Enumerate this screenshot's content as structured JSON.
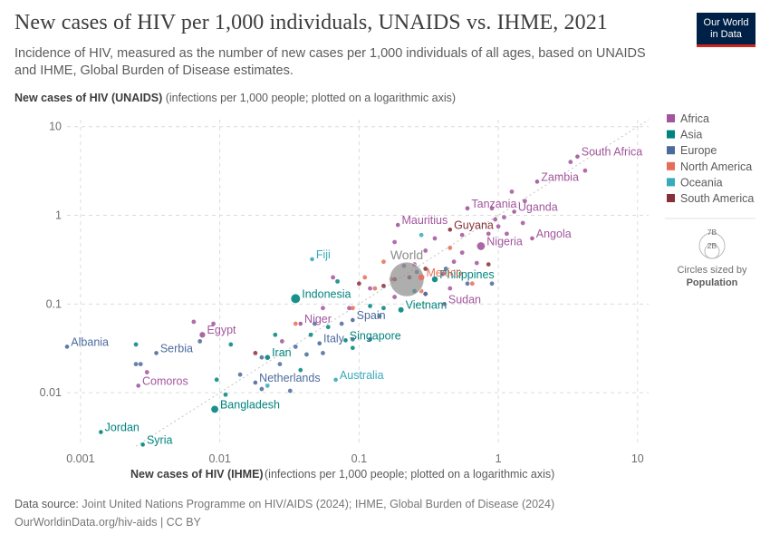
{
  "header": {
    "title": "New cases of HIV per 1,000 individuals, UNAIDS vs. IHME, 2021",
    "subtitle": "Incidence of HIV, measured as the number of new cases per 1,000 individuals of all ages, based on UNAIDS and IHME, Global Burden of Disease estimates.",
    "logo_line1": "Our World",
    "logo_line2": "in Data"
  },
  "axes": {
    "y_label_bold": "New cases of HIV (UNAIDS)",
    "y_label_rest": " (infections per 1,000 people; plotted on a logarithmic axis)",
    "x_label_bold": "New cases of HIV (IHME)",
    "x_label_rest": " (infections per 1,000 people; plotted on a logarithmic axis)"
  },
  "legend": {
    "size_title": "Circles sized by",
    "size_variable": "Population",
    "size_values": [
      "7B",
      "2B"
    ]
  },
  "footer": {
    "source_label": "Data source:",
    "source_text": " Joint United Nations Programme on HIV/AIDS (2024); IHME, Global Burden of Disease (2024)",
    "url_text": "OurWorldinData.org/hiv-aids | CC BY"
  },
  "chart_data": {
    "type": "scatter",
    "x_scale": "log",
    "y_scale": "log",
    "xlim": [
      0.0008,
      12
    ],
    "ylim": [
      0.0025,
      12
    ],
    "x_ticks": [
      {
        "v": 0.001,
        "label": "0.001"
      },
      {
        "v": 0.01,
        "label": "0.01"
      },
      {
        "v": 0.1,
        "label": "0.1"
      },
      {
        "v": 1,
        "label": "1"
      },
      {
        "v": 10,
        "label": "10"
      }
    ],
    "y_ticks": [
      {
        "v": 0.01,
        "label": "0.01"
      },
      {
        "v": 0.1,
        "label": "0.1"
      },
      {
        "v": 1,
        "label": "1"
      },
      {
        "v": 10,
        "label": "10"
      }
    ],
    "grid": true,
    "diagonal": "y = x reference line",
    "colors": {
      "Africa": "#a2559c",
      "Asia": "#00847e",
      "Europe": "#4c6a9c",
      "North America": "#e56e5a",
      "Oceania": "#38aaba",
      "South America": "#883039",
      "World": "#8c8c8c"
    },
    "legend_entries": [
      "Africa",
      "Asia",
      "Europe",
      "North America",
      "Oceania",
      "South America"
    ],
    "labeled_points": [
      {
        "name": "South Africa",
        "region": "Africa",
        "x": 3.7,
        "y": 4.6,
        "pop_m": 60
      },
      {
        "name": "Zambia",
        "region": "Africa",
        "x": 1.9,
        "y": 2.4,
        "pop_m": 19
      },
      {
        "name": "Tanzania",
        "region": "Africa",
        "x": 0.6,
        "y": 1.2,
        "pop_m": 64
      },
      {
        "name": "Uganda",
        "region": "Africa",
        "x": 1.3,
        "y": 1.1,
        "pop_m": 46
      },
      {
        "name": "Mauritius",
        "region": "Africa",
        "x": 0.19,
        "y": 0.78,
        "pop_m": 1.3
      },
      {
        "name": "Guyana",
        "region": "South America",
        "x": 0.45,
        "y": 0.69,
        "pop_m": 0.8
      },
      {
        "name": "Nigeria",
        "region": "Africa",
        "x": 0.75,
        "y": 0.45,
        "pop_m": 213
      },
      {
        "name": "Angola",
        "region": "Africa",
        "x": 1.75,
        "y": 0.55,
        "pop_m": 34
      },
      {
        "name": "Fiji",
        "region": "Oceania",
        "x": 0.046,
        "y": 0.32,
        "pop_m": 0.9
      },
      {
        "name": "World",
        "region": "World",
        "x": 0.22,
        "y": 0.19,
        "pop_m": 7900
      },
      {
        "name": "Philippines",
        "region": "Asia",
        "x": 0.35,
        "y": 0.19,
        "pop_m": 114
      },
      {
        "name": "Mexico",
        "region": "North America",
        "x": 0.28,
        "y": 0.2,
        "pop_m": 127
      },
      {
        "name": "Indonesia",
        "region": "Asia",
        "x": 0.035,
        "y": 0.115,
        "pop_m": 274
      },
      {
        "name": "Sudan",
        "region": "Africa",
        "x": 0.41,
        "y": 0.1,
        "pop_m": 46
      },
      {
        "name": "Vietnam",
        "region": "Asia",
        "x": 0.2,
        "y": 0.086,
        "pop_m": 98
      },
      {
        "name": "Spain",
        "region": "Europe",
        "x": 0.09,
        "y": 0.066,
        "pop_m": 47
      },
      {
        "name": "Niger",
        "region": "Africa",
        "x": 0.038,
        "y": 0.06,
        "pop_m": 25
      },
      {
        "name": "Egypt",
        "region": "Africa",
        "x": 0.0075,
        "y": 0.045,
        "pop_m": 109
      },
      {
        "name": "Albania",
        "region": "Europe",
        "x": 0.0008,
        "y": 0.033,
        "pop_m": 2.8
      },
      {
        "name": "Serbia",
        "region": "Europe",
        "x": 0.0035,
        "y": 0.028,
        "pop_m": 6.8
      },
      {
        "name": "Italy",
        "region": "Europe",
        "x": 0.052,
        "y": 0.036,
        "pop_m": 59
      },
      {
        "name": "Singapore",
        "region": "Asia",
        "x": 0.08,
        "y": 0.039,
        "pop_m": 5.9
      },
      {
        "name": "Iran",
        "region": "Asia",
        "x": 0.022,
        "y": 0.025,
        "pop_m": 87
      },
      {
        "name": "Comoros",
        "region": "Africa",
        "x": 0.0026,
        "y": 0.012,
        "pop_m": 0.8
      },
      {
        "name": "Netherlands",
        "region": "Europe",
        "x": 0.018,
        "y": 0.013,
        "pop_m": 17.5
      },
      {
        "name": "Australia",
        "region": "Oceania",
        "x": 0.068,
        "y": 0.014,
        "pop_m": 25.7
      },
      {
        "name": "Bangladesh",
        "region": "Asia",
        "x": 0.0092,
        "y": 0.0065,
        "pop_m": 169
      },
      {
        "name": "Jordan",
        "region": "Asia",
        "x": 0.0014,
        "y": 0.0036,
        "pop_m": 11
      },
      {
        "name": "Syria",
        "region": "Asia",
        "x": 0.0028,
        "y": 0.0026,
        "pop_m": 21
      }
    ],
    "other_points": [
      {
        "region": "Africa",
        "x": 3.3,
        "y": 4.0
      },
      {
        "region": "Africa",
        "x": 4.2,
        "y": 3.2
      },
      {
        "region": "Africa",
        "x": 1.25,
        "y": 1.85
      },
      {
        "region": "Africa",
        "x": 1.55,
        "y": 1.45
      },
      {
        "region": "Africa",
        "x": 1.1,
        "y": 0.95
      },
      {
        "region": "Africa",
        "x": 1.0,
        "y": 0.75
      },
      {
        "region": "Africa",
        "x": 1.5,
        "y": 0.82
      },
      {
        "region": "Africa",
        "x": 1.15,
        "y": 0.62
      },
      {
        "region": "Africa",
        "x": 0.85,
        "y": 0.62
      },
      {
        "region": "Africa",
        "x": 0.9,
        "y": 1.2
      },
      {
        "region": "Africa",
        "x": 0.35,
        "y": 0.55
      },
      {
        "region": "Africa",
        "x": 0.55,
        "y": 0.38
      },
      {
        "region": "Africa",
        "x": 0.3,
        "y": 0.4
      },
      {
        "region": "Africa",
        "x": 0.18,
        "y": 0.5
      },
      {
        "region": "Africa",
        "x": 0.25,
        "y": 0.28
      },
      {
        "region": "Africa",
        "x": 0.4,
        "y": 0.22
      },
      {
        "region": "Africa",
        "x": 0.48,
        "y": 0.3
      },
      {
        "region": "Africa",
        "x": 0.7,
        "y": 0.29
      },
      {
        "region": "Africa",
        "x": 0.3,
        "y": 0.13
      },
      {
        "region": "Africa",
        "x": 0.18,
        "y": 0.12
      },
      {
        "region": "Africa",
        "x": 0.45,
        "y": 0.15
      },
      {
        "region": "Africa",
        "x": 0.12,
        "y": 0.15
      },
      {
        "region": "Africa",
        "x": 0.065,
        "y": 0.2
      },
      {
        "region": "Africa",
        "x": 0.055,
        "y": 0.09
      },
      {
        "region": "Africa",
        "x": 0.028,
        "y": 0.038
      },
      {
        "region": "Africa",
        "x": 0.085,
        "y": 0.09
      },
      {
        "region": "Africa",
        "x": 0.0065,
        "y": 0.063
      },
      {
        "region": "Africa",
        "x": 0.009,
        "y": 0.06
      },
      {
        "region": "Africa",
        "x": 0.003,
        "y": 0.017
      },
      {
        "region": "Africa",
        "x": 0.21,
        "y": 0.27
      },
      {
        "region": "Africa",
        "x": 0.95,
        "y": 0.9
      },
      {
        "region": "Africa",
        "x": 0.55,
        "y": 0.6
      },
      {
        "region": "Asia",
        "x": 0.0025,
        "y": 0.035
      },
      {
        "region": "Asia",
        "x": 0.0095,
        "y": 0.014
      },
      {
        "region": "Asia",
        "x": 0.012,
        "y": 0.035
      },
      {
        "region": "Asia",
        "x": 0.025,
        "y": 0.045
      },
      {
        "region": "Asia",
        "x": 0.045,
        "y": 0.045
      },
      {
        "region": "Asia",
        "x": 0.06,
        "y": 0.055
      },
      {
        "region": "Asia",
        "x": 0.09,
        "y": 0.032
      },
      {
        "region": "Asia",
        "x": 0.15,
        "y": 0.09
      },
      {
        "region": "Asia",
        "x": 0.12,
        "y": 0.095
      },
      {
        "region": "Asia",
        "x": 0.07,
        "y": 0.18
      },
      {
        "region": "Asia",
        "x": 0.25,
        "y": 0.14
      },
      {
        "region": "Asia",
        "x": 0.038,
        "y": 0.018
      },
      {
        "region": "Asia",
        "x": 0.011,
        "y": 0.0095
      },
      {
        "region": "Europe",
        "x": 0.0025,
        "y": 0.021
      },
      {
        "region": "Europe",
        "x": 0.0027,
        "y": 0.021
      },
      {
        "region": "Europe",
        "x": 0.0072,
        "y": 0.038
      },
      {
        "region": "Europe",
        "x": 0.014,
        "y": 0.016
      },
      {
        "region": "Europe",
        "x": 0.02,
        "y": 0.011
      },
      {
        "region": "Europe",
        "x": 0.027,
        "y": 0.021
      },
      {
        "region": "Europe",
        "x": 0.032,
        "y": 0.0105
      },
      {
        "region": "Europe",
        "x": 0.035,
        "y": 0.033
      },
      {
        "region": "Europe",
        "x": 0.042,
        "y": 0.027
      },
      {
        "region": "Europe",
        "x": 0.055,
        "y": 0.028
      },
      {
        "region": "Europe",
        "x": 0.075,
        "y": 0.06
      },
      {
        "region": "Europe",
        "x": 0.09,
        "y": 0.04
      },
      {
        "region": "Europe",
        "x": 0.12,
        "y": 0.04
      },
      {
        "region": "Europe",
        "x": 0.14,
        "y": 0.073
      },
      {
        "region": "Europe",
        "x": 0.26,
        "y": 0.23
      },
      {
        "region": "Europe",
        "x": 0.3,
        "y": 0.13
      },
      {
        "region": "Europe",
        "x": 0.42,
        "y": 0.25
      },
      {
        "region": "Europe",
        "x": 0.6,
        "y": 0.17
      },
      {
        "region": "Europe",
        "x": 0.9,
        "y": 0.17
      },
      {
        "region": "Europe",
        "x": 0.048,
        "y": 0.06
      },
      {
        "region": "Europe",
        "x": 0.02,
        "y": 0.025
      },
      {
        "region": "North America",
        "x": 0.035,
        "y": 0.06
      },
      {
        "region": "North America",
        "x": 0.09,
        "y": 0.09
      },
      {
        "region": "North America",
        "x": 0.13,
        "y": 0.15
      },
      {
        "region": "North America",
        "x": 0.17,
        "y": 0.19
      },
      {
        "region": "North America",
        "x": 0.28,
        "y": 0.14
      },
      {
        "region": "North America",
        "x": 0.15,
        "y": 0.3
      },
      {
        "region": "North America",
        "x": 0.65,
        "y": 0.17
      },
      {
        "region": "North America",
        "x": 0.45,
        "y": 0.43
      },
      {
        "region": "North America",
        "x": 0.11,
        "y": 0.2
      },
      {
        "region": "Oceania",
        "x": 0.022,
        "y": 0.012
      },
      {
        "region": "Oceania",
        "x": 0.28,
        "y": 0.6
      },
      {
        "region": "South America",
        "x": 0.018,
        "y": 0.028
      },
      {
        "region": "South America",
        "x": 0.1,
        "y": 0.17
      },
      {
        "region": "South America",
        "x": 0.18,
        "y": 0.19
      },
      {
        "region": "South America",
        "x": 0.23,
        "y": 0.2
      },
      {
        "region": "South America",
        "x": 0.3,
        "y": 0.25
      },
      {
        "region": "South America",
        "x": 0.85,
        "y": 0.28
      },
      {
        "region": "South America",
        "x": 0.15,
        "y": 0.16
      }
    ]
  }
}
